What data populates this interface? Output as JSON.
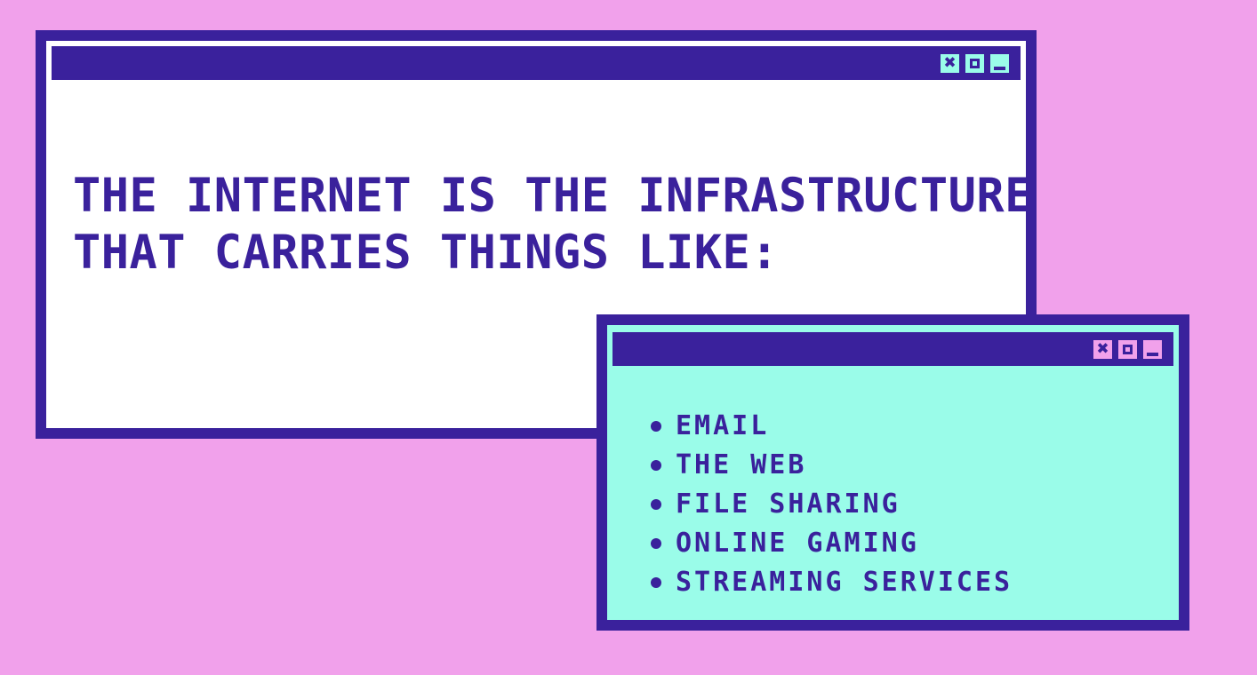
{
  "colors": {
    "background": "#f1a1eb",
    "frame": "#3a219c",
    "main_window_fill": "#ffffff",
    "list_window_fill": "#9afce9",
    "text": "#3a219c"
  },
  "main_window": {
    "controls": [
      "close-icon",
      "maximize-icon",
      "minimize-icon"
    ],
    "control_fill": "#9afce9",
    "headline_line1": "THE INTERNET IS THE INFRASTRUCTURE",
    "headline_line2": "THAT CARRIES THINGS LIKE:"
  },
  "list_window": {
    "controls": [
      "close-icon",
      "maximize-icon",
      "minimize-icon"
    ],
    "control_fill": "#f1a1eb",
    "items": [
      "EMAIL",
      "THE WEB",
      "FILE SHARING",
      "ONLINE GAMING",
      "STREAMING SERVICES"
    ]
  }
}
